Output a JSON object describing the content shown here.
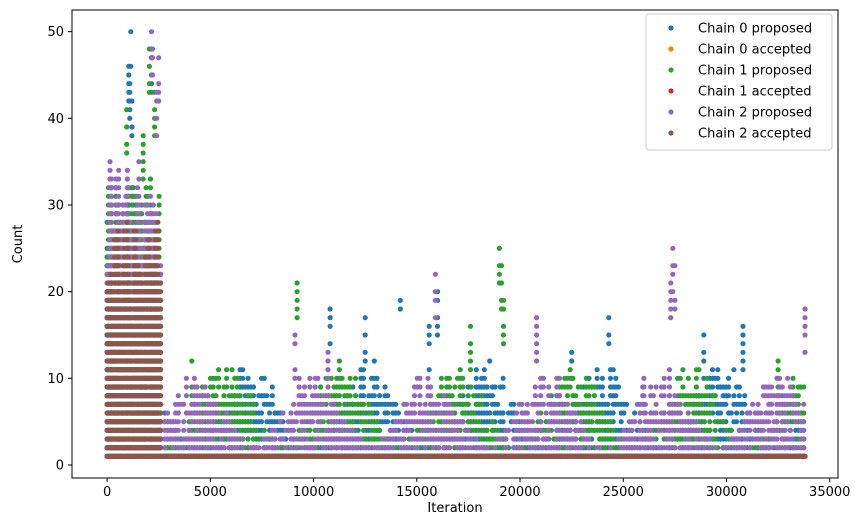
{
  "chart_data": {
    "type": "scatter",
    "xlabel": "Iteration",
    "ylabel": "Count",
    "xlim": [
      -1700,
      35400
    ],
    "ylim": [
      -1.5,
      52.5
    ],
    "x_ticks": [
      0,
      5000,
      10000,
      15000,
      20000,
      25000,
      30000,
      35000
    ],
    "y_ticks": [
      0,
      10,
      20,
      30,
      40,
      50
    ],
    "legend_position": "top-right",
    "grid": false,
    "x_extent": [
      0,
      33800
    ],
    "burn_in_end": 2600,
    "series": [
      {
        "name": "Chain 0 proposed",
        "color": "#1f77b4",
        "kind": "proposed",
        "typical_max_burn": 33,
        "typical_max_after": 10,
        "peaks": [
          [
            1150,
            50
          ],
          [
            1050,
            46
          ],
          [
            1100,
            44
          ],
          [
            1200,
            42
          ],
          [
            2150,
            48
          ],
          [
            10800,
            18
          ],
          [
            12500,
            17
          ],
          [
            14200,
            19
          ],
          [
            15600,
            16
          ],
          [
            16000,
            20
          ],
          [
            22500,
            13
          ],
          [
            24300,
            17
          ],
          [
            28900,
            15
          ],
          [
            30800,
            16
          ]
        ]
      },
      {
        "name": "Chain 0 accepted",
        "color": "#ff7f0e",
        "kind": "accepted",
        "typical_max_burn": 4,
        "typical_max_after": 1,
        "peaks": [
          [
            400,
            3
          ],
          [
            1300,
            2
          ]
        ]
      },
      {
        "name": "Chain 1 proposed",
        "color": "#2ca02c",
        "kind": "proposed",
        "typical_max_burn": 34,
        "typical_max_after": 10,
        "peaks": [
          [
            2050,
            48
          ],
          [
            2300,
            43
          ],
          [
            950,
            41
          ],
          [
            1750,
            38
          ],
          [
            9200,
            21
          ],
          [
            17600,
            16
          ],
          [
            19000,
            25
          ],
          [
            19100,
            23
          ],
          [
            19200,
            19
          ],
          [
            32500,
            12
          ],
          [
            4100,
            12
          ]
        ]
      },
      {
        "name": "Chain 1 accepted",
        "color": "#d62728",
        "kind": "accepted",
        "typical_max_burn": 3,
        "typical_max_after": 1,
        "peaks": [
          [
            100,
            1
          ],
          [
            1100,
            2
          ]
        ]
      },
      {
        "name": "Chain 2 proposed",
        "color": "#9467bd",
        "kind": "proposed",
        "typical_max_burn": 35,
        "typical_max_after": 9,
        "peaks": [
          [
            2150,
            50
          ],
          [
            2200,
            48
          ],
          [
            2500,
            47
          ],
          [
            2400,
            43
          ],
          [
            15900,
            22
          ],
          [
            20800,
            17
          ],
          [
            27400,
            25
          ],
          [
            27500,
            23
          ],
          [
            27300,
            21
          ],
          [
            33800,
            18
          ],
          [
            10700,
            13
          ],
          [
            9100,
            15
          ],
          [
            26000,
            10
          ]
        ]
      },
      {
        "name": "Chain 2 accepted",
        "color": "#8c564b",
        "kind": "accepted",
        "typical_max_burn": 28,
        "typical_max_after": 1,
        "peaks": [
          [
            1500,
            25
          ],
          [
            2300,
            27
          ]
        ]
      }
    ]
  }
}
